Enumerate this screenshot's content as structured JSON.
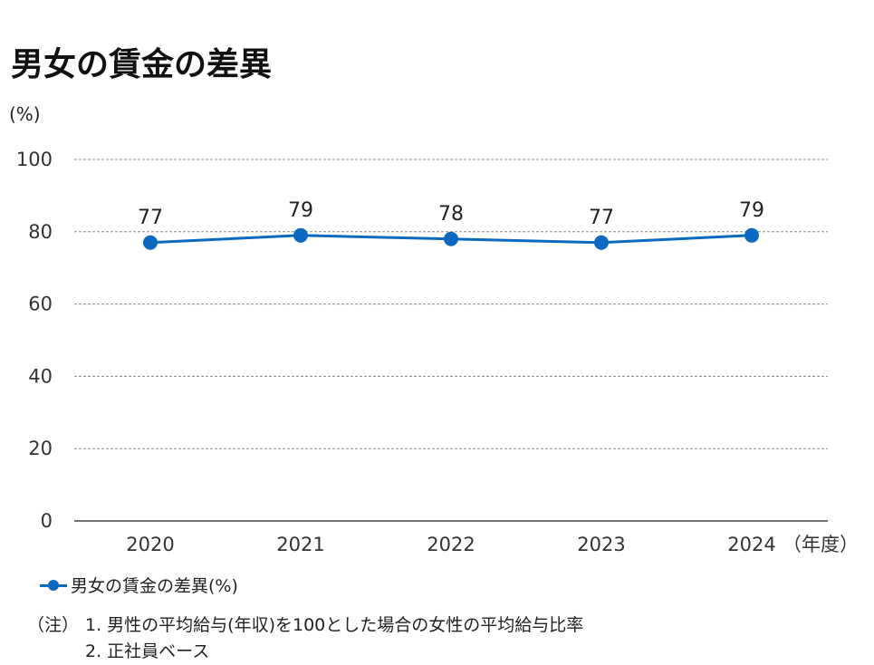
{
  "title": "男女の賃金の差異",
  "unit_label": "(%)",
  "x_unit_label": "（年度）",
  "legend_label": "男女の賃金の差異(%)",
  "notes": {
    "prefix": "（注）",
    "items": [
      "1. 男性の平均給与(年収)を100とした場合の女性の平均給与比率",
      "2. 正社員ベース"
    ]
  },
  "colors": {
    "series": "#0B6ABF",
    "grid": "#888888",
    "axis": "#444444"
  },
  "chart_data": {
    "type": "line",
    "categories": [
      "2020",
      "2021",
      "2022",
      "2023",
      "2024"
    ],
    "series": [
      {
        "name": "男女の賃金の差異(%)",
        "values": [
          77,
          79,
          78,
          77,
          79
        ]
      }
    ],
    "data_labels": [
      "77",
      "79",
      "78",
      "77",
      "79"
    ],
    "y_ticks": [
      "0",
      "20",
      "40",
      "60",
      "80",
      "100"
    ],
    "ylim": [
      0,
      100
    ],
    "xlabel": "（年度）",
    "ylabel": "(%)",
    "grid": "dashed horizontal",
    "legend_position": "bottom-left"
  }
}
